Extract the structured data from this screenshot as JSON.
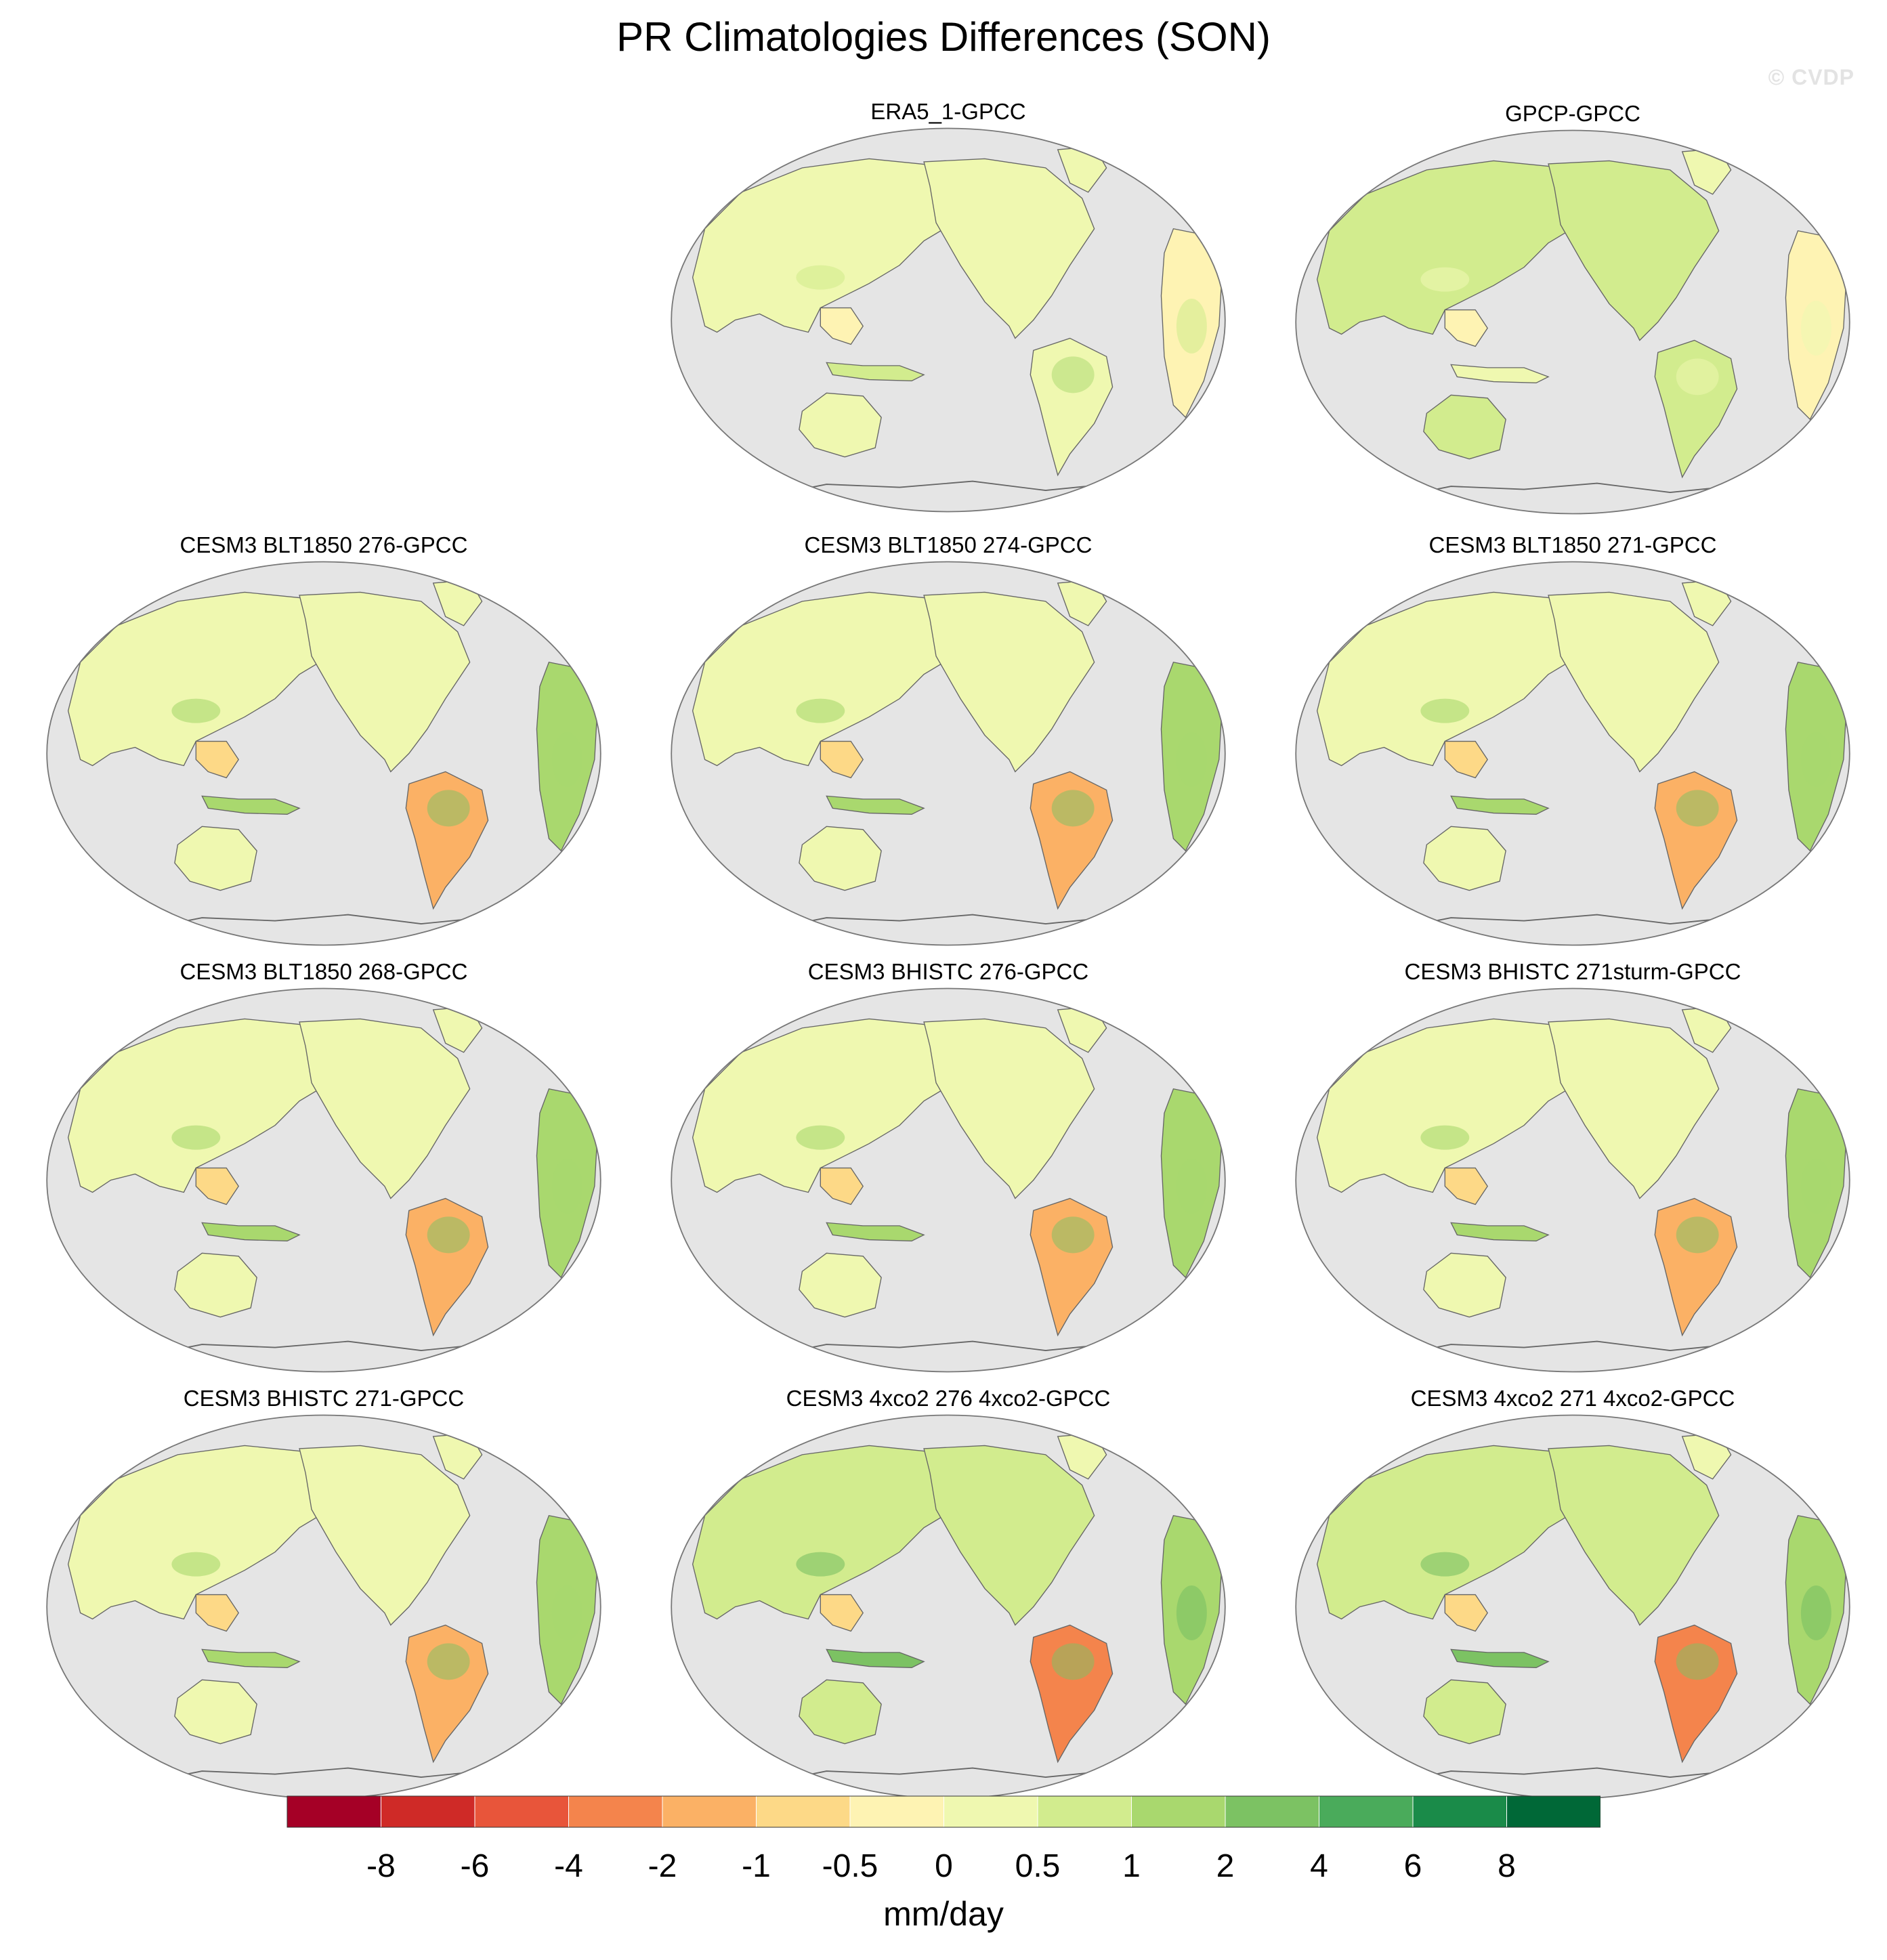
{
  "title": "PR Climatologies Differences (SON)",
  "credit": "© CVDP",
  "panels": [
    {
      "label": "ERA5_1-GPCC",
      "style": "obs"
    },
    {
      "label": "GPCP-GPCC",
      "style": "obs2"
    },
    {
      "label": "CESM3 BLT1850 276-GPCC",
      "style": "model"
    },
    {
      "label": "CESM3 BLT1850 274-GPCC",
      "style": "model"
    },
    {
      "label": "CESM3 BLT1850 271-GPCC",
      "style": "model"
    },
    {
      "label": "CESM3 BLT1850 268-GPCC",
      "style": "model"
    },
    {
      "label": "CESM3 BHISTC 276-GPCC",
      "style": "model"
    },
    {
      "label": "CESM3 BHISTC 271sturm-GPCC",
      "style": "model"
    },
    {
      "label": "CESM3 BHISTC 271-GPCC",
      "style": "model"
    },
    {
      "label": "CESM3 4xco2 276 4xco2-GPCC",
      "style": "co2"
    },
    {
      "label": "CESM3 4xco2 271 4xco2-GPCC",
      "style": "co2"
    }
  ],
  "colorbar": {
    "units": "mm/day",
    "labels": [
      "-8",
      "-6",
      "-4",
      "-2",
      "-1",
      "-0.5",
      "0",
      "0.5",
      "1",
      "2",
      "4",
      "6",
      "8"
    ],
    "colors": [
      "#a50026",
      "#cf2a27",
      "#e8553a",
      "#f4844c",
      "#fbb165",
      "#fdd987",
      "#fef3b3",
      "#eff8b0",
      "#d2ec8e",
      "#a9d86e",
      "#7cc263",
      "#4aab5b",
      "#1a8b49",
      "#006837"
    ]
  },
  "map_colors": {
    "ocean": "#e5e5e5",
    "coast": "#666666"
  }
}
